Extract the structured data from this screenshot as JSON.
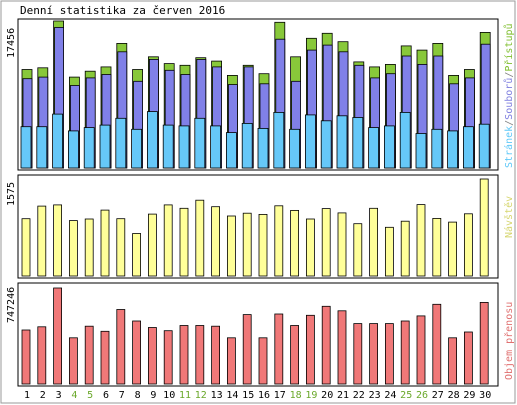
{
  "title": "Denní statistika za červen 2016",
  "panels": {
    "top": {
      "ymax_label": "17456",
      "legend": [
        {
          "text": "Stránek",
          "color": "#5fc8f8"
        },
        {
          "text": "/",
          "color": "#808080"
        },
        {
          "text": "Souborů",
          "color": "#8080e0"
        },
        {
          "text": "/",
          "color": "#808080"
        },
        {
          "text": "Přístupů",
          "color": "#80bf30"
        }
      ]
    },
    "middle": {
      "ymax_label": "1575",
      "legend": "Návštěv",
      "legend_color": "#d6d670"
    },
    "bottom": {
      "ymax_label": "747246",
      "legend": "Objem přenosu",
      "legend_color": "#e07070"
    }
  },
  "colors": {
    "hits": "#88c83a",
    "files": "#8080e8",
    "pages": "#66c8f8",
    "visits": "#ffff99",
    "kbytes": "#f07878",
    "weekend_label": "#6aa82a",
    "weekday_label": "#000000"
  },
  "chart_data": [
    {
      "type": "bar",
      "title": "Denní statistika za červen 2016",
      "categories": [
        "1",
        "2",
        "3",
        "4",
        "5",
        "6",
        "7",
        "8",
        "9",
        "10",
        "11",
        "12",
        "13",
        "14",
        "15",
        "16",
        "17",
        "18",
        "19",
        "20",
        "21",
        "22",
        "23",
        "24",
        "25",
        "26",
        "27",
        "28",
        "29",
        "30"
      ],
      "weekend": [
        "4",
        "5",
        "11",
        "12",
        "18",
        "19",
        "25",
        "26"
      ],
      "ylim": [
        0,
        17456
      ],
      "series": [
        {
          "name": "Přístupů",
          "values": [
            11700,
            11900,
            17456,
            10800,
            11500,
            12000,
            14800,
            11700,
            13200,
            12400,
            12200,
            13100,
            12700,
            11000,
            12200,
            11200,
            17300,
            13200,
            15400,
            16000,
            15000,
            12600,
            12000,
            12300,
            14500,
            14000,
            14800,
            11000,
            11700,
            16100
          ]
        },
        {
          "name": "Souborů",
          "values": [
            10600,
            10800,
            16700,
            9800,
            10700,
            11100,
            13800,
            10300,
            12900,
            11600,
            11100,
            12900,
            12000,
            9900,
            12000,
            10000,
            15300,
            10300,
            14000,
            14600,
            13800,
            12200,
            10700,
            11200,
            13300,
            12300,
            13300,
            10000,
            10700,
            14700
          ]
        },
        {
          "name": "Stránek",
          "values": [
            4900,
            4900,
            6400,
            4400,
            4800,
            5100,
            5900,
            4600,
            6700,
            5100,
            5000,
            5900,
            5000,
            4200,
            5300,
            4700,
            6600,
            4600,
            6300,
            5600,
            6200,
            6000,
            4800,
            5000,
            6600,
            4100,
            4600,
            4400,
            4900,
            5200
          ]
        }
      ]
    },
    {
      "type": "bar",
      "categories": [
        "1",
        "2",
        "3",
        "4",
        "5",
        "6",
        "7",
        "8",
        "9",
        "10",
        "11",
        "12",
        "13",
        "14",
        "15",
        "16",
        "17",
        "18",
        "19",
        "20",
        "21",
        "22",
        "23",
        "24",
        "25",
        "26",
        "27",
        "28",
        "29",
        "30"
      ],
      "ylim": [
        0,
        1575
      ],
      "series": [
        {
          "name": "Návštěv",
          "values": [
            930,
            1135,
            1155,
            900,
            925,
            1070,
            930,
            690,
            1005,
            1155,
            1100,
            1230,
            1125,
            975,
            1020,
            1000,
            1140,
            1065,
            925,
            1095,
            1025,
            850,
            1100,
            790,
            890,
            1160,
            935,
            875,
            1010,
            1575
          ]
        }
      ]
    },
    {
      "type": "bar",
      "categories": [
        "1",
        "2",
        "3",
        "4",
        "5",
        "6",
        "7",
        "8",
        "9",
        "10",
        "11",
        "12",
        "13",
        "14",
        "15",
        "16",
        "17",
        "18",
        "19",
        "20",
        "21",
        "22",
        "23",
        "24",
        "25",
        "26",
        "27",
        "28",
        "29",
        "30"
      ],
      "ylim": [
        0,
        747246
      ],
      "series": [
        {
          "name": "Objem přenosu",
          "values": [
            420000,
            445000,
            747246,
            360000,
            450000,
            410000,
            580000,
            490000,
            440000,
            415000,
            455000,
            455000,
            450000,
            360000,
            540000,
            360000,
            545000,
            455000,
            535000,
            605000,
            570000,
            470000,
            470000,
            470000,
            490000,
            530000,
            620000,
            360000,
            405000,
            635000
          ]
        }
      ]
    }
  ]
}
